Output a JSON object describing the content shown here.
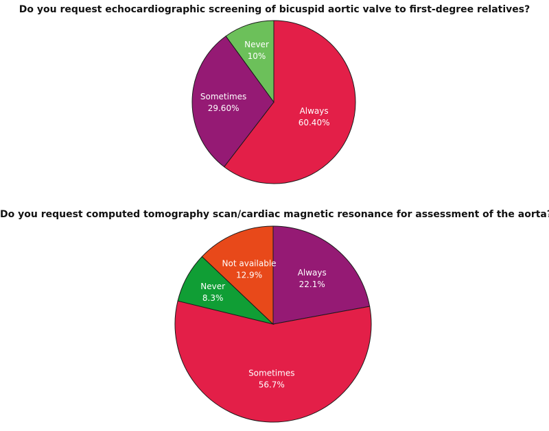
{
  "chart_data": [
    {
      "type": "pie",
      "title": "Do you request echocardiographic screening of bicuspid aortic valve to first-degree relatives?",
      "slices": [
        {
          "label": "Always",
          "value_label": "60.40%",
          "value": 60.4,
          "color": "#E31F48"
        },
        {
          "label": "Sometimes",
          "value_label": "29.60%",
          "value": 29.6,
          "color": "#951A74"
        },
        {
          "label": "Never",
          "value_label": "10%",
          "value": 10,
          "color": "#6CC05A"
        }
      ]
    },
    {
      "type": "pie",
      "title": "Do you request computed tomography scan/cardiac magnetic resonance for assessment of the aorta?",
      "slices": [
        {
          "label": "Always",
          "value_label": "22.1%",
          "value": 22.1,
          "color": "#951A74"
        },
        {
          "label": "Sometimes",
          "value_label": "56.7%",
          "value": 56.7,
          "color": "#E31F48"
        },
        {
          "label": "Never",
          "value_label": "8.3%",
          "value": 8.3,
          "color": "#109E35"
        },
        {
          "label": "Not available",
          "value_label": "12.9%",
          "value": 12.9,
          "color": "#E8491A"
        }
      ]
    }
  ]
}
